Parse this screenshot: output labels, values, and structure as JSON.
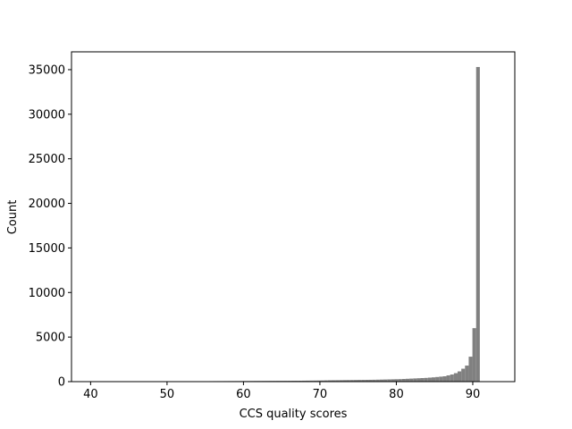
{
  "chart_data": {
    "type": "bar",
    "xlabel": "CCS quality scores",
    "ylabel": "Count",
    "xlim": [
      37.5,
      95.5
    ],
    "ylim": [
      0,
      37000
    ],
    "xticks": [
      40,
      50,
      60,
      70,
      80,
      90
    ],
    "yticks": [
      0,
      5000,
      10000,
      15000,
      20000,
      25000,
      30000,
      35000
    ],
    "grid": false,
    "bar_color": "#808080",
    "bin_width": 0.485,
    "bin_start": 40.0,
    "values": [
      0,
      0,
      0,
      0,
      0,
      0,
      0,
      0,
      0,
      4,
      8,
      10,
      12,
      15,
      18,
      20,
      22,
      25,
      28,
      30,
      32,
      34,
      35,
      36,
      37,
      38,
      40,
      42,
      44,
      46,
      48,
      50,
      52,
      54,
      56,
      58,
      60,
      62,
      64,
      66,
      68,
      70,
      72,
      74,
      76,
      78,
      80,
      82,
      84,
      86,
      88,
      90,
      92,
      94,
      96,
      98,
      100,
      105,
      110,
      115,
      120,
      125,
      130,
      140,
      150,
      155,
      160,
      165,
      170,
      175,
      180,
      185,
      190,
      195,
      200,
      205,
      210,
      220,
      230,
      240,
      250,
      260,
      270,
      280,
      300,
      320,
      340,
      360,
      380,
      400,
      420,
      450,
      480,
      520,
      560,
      600,
      700,
      800,
      950,
      1150,
      1450,
      1800,
      2800,
      6000,
      35300
    ]
  }
}
